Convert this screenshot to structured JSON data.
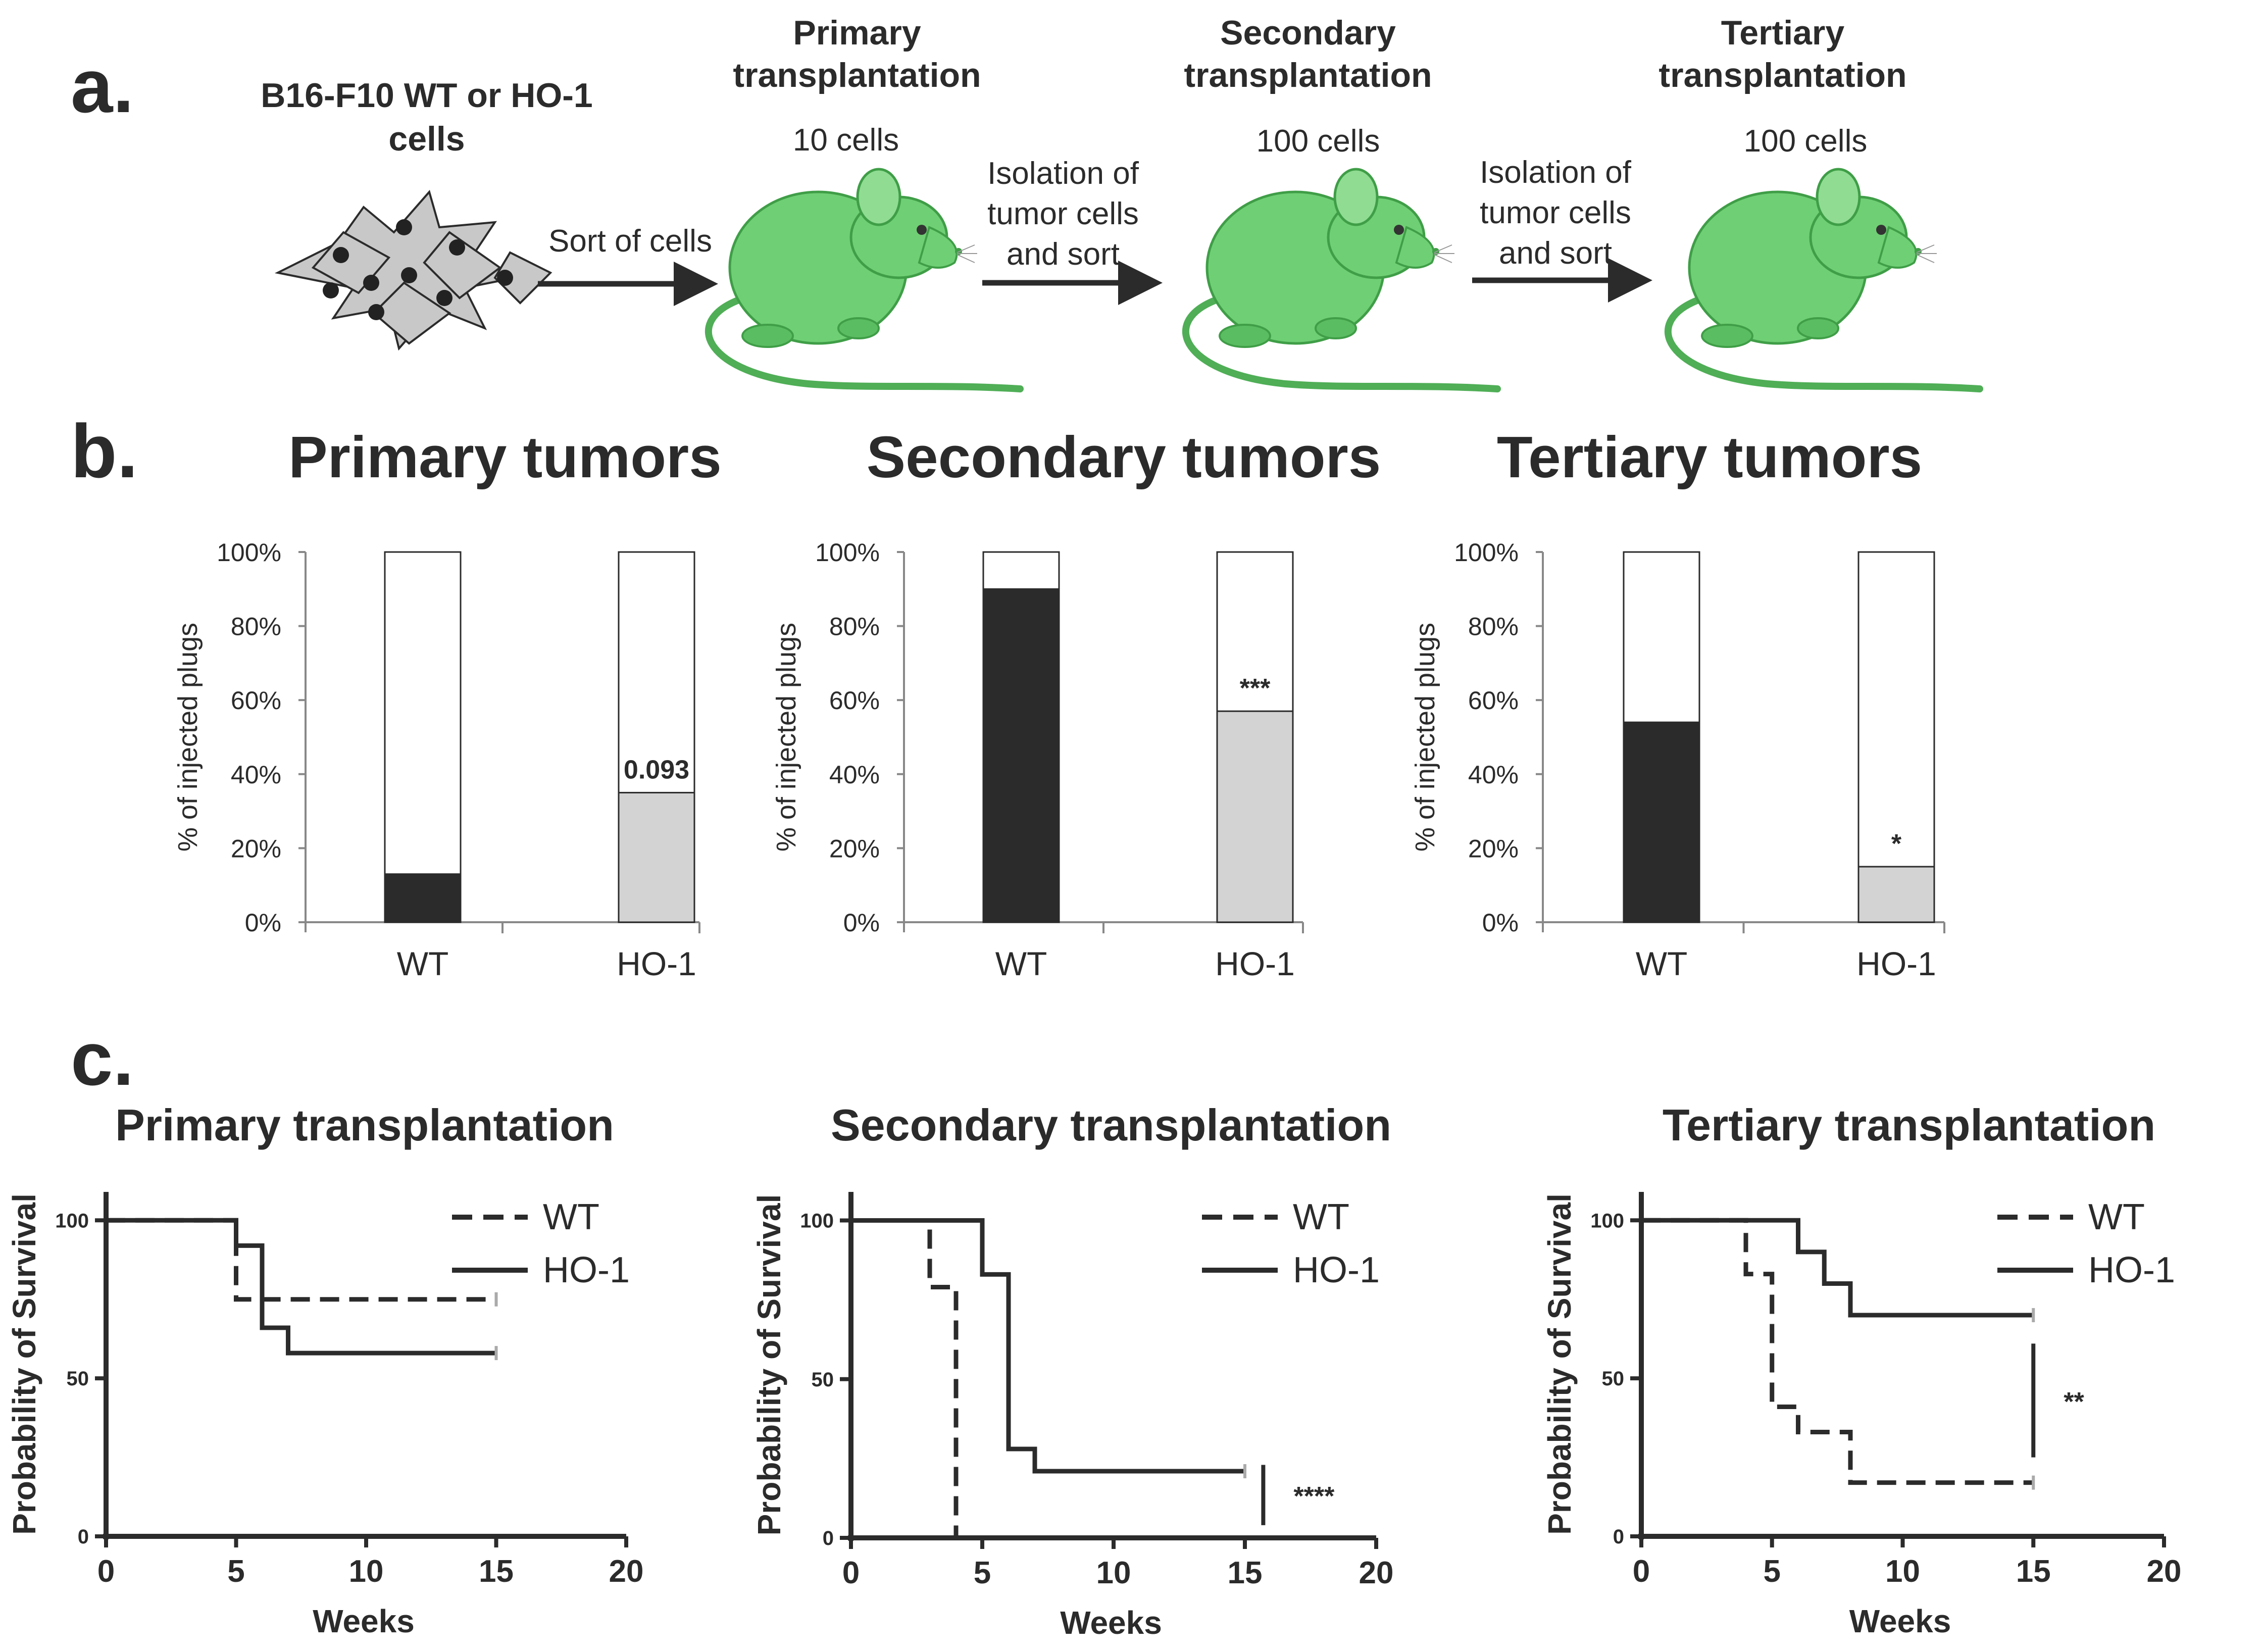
{
  "panel_a": {
    "letter": "a.",
    "cells_label_line1": "B16-F10 WT or HO-1",
    "cells_label_line2": "cells",
    "arrow1_label": "Sort of cells",
    "arrow2_label_lines": [
      "Isolation of",
      "tumor cells",
      "and sort"
    ],
    "arrow3_label_lines": [
      "Isolation of",
      "tumor cells",
      "and sort"
    ],
    "stages": [
      {
        "title_line1": "Primary",
        "title_line2": "transplantation",
        "cells": "10 cells"
      },
      {
        "title_line1": "Secondary",
        "title_line2": "transplantation",
        "cells": "100 cells"
      },
      {
        "title_line1": "Tertiary",
        "title_line2": "transplantation",
        "cells": "100 cells"
      }
    ],
    "colors": {
      "mouse": "#6fcf74",
      "mouse_dark": "#3f9e47",
      "cell": "#c8c8c8",
      "nucleus": "#222222"
    }
  },
  "panel_b": {
    "letter": "b."
  },
  "panel_c": {
    "letter": "c."
  },
  "chart_data": [
    {
      "type": "bar",
      "stacked": true,
      "title": "Primary tumors",
      "ylabel": "% of injected plugs",
      "categories": [
        "WT",
        "HO-1"
      ],
      "values": [
        13,
        35
      ],
      "ylim": [
        0,
        100
      ],
      "yticks": [
        "0%",
        "20%",
        "40%",
        "60%",
        "80%",
        "100%"
      ],
      "annotation": {
        "category": "HO-1",
        "text": "0.093"
      },
      "colors": [
        "#2b2b2b",
        "#d3d3d3"
      ]
    },
    {
      "type": "bar",
      "stacked": true,
      "title": "Secondary tumors",
      "ylabel": "% of injected plugs",
      "categories": [
        "WT",
        "HO-1"
      ],
      "values": [
        90,
        57
      ],
      "ylim": [
        0,
        100
      ],
      "yticks": [
        "0%",
        "20%",
        "40%",
        "60%",
        "80%",
        "100%"
      ],
      "annotation": {
        "category": "HO-1",
        "text": "***"
      },
      "colors": [
        "#2b2b2b",
        "#d3d3d3"
      ]
    },
    {
      "type": "bar",
      "stacked": true,
      "title": "Tertiary tumors",
      "ylabel": "% of injected plugs",
      "categories": [
        "WT",
        "HO-1"
      ],
      "values": [
        54,
        15
      ],
      "ylim": [
        0,
        100
      ],
      "yticks": [
        "0%",
        "20%",
        "40%",
        "60%",
        "80%",
        "100%"
      ],
      "annotation": {
        "category": "HO-1",
        "text": "*"
      },
      "colors": [
        "#2b2b2b",
        "#d3d3d3"
      ]
    },
    {
      "type": "line",
      "step": true,
      "title": "Primary transplantation",
      "xlabel": "Weeks",
      "ylabel": "Probability of Survival",
      "xlim": [
        0,
        20
      ],
      "ylim": [
        0,
        100
      ],
      "xticks": [
        0,
        5,
        10,
        15,
        20
      ],
      "yticks": [
        0,
        50,
        100
      ],
      "series": [
        {
          "name": "WT",
          "dash": true,
          "points": [
            [
              0,
              100
            ],
            [
              5,
              75
            ],
            [
              15,
              75
            ]
          ]
        },
        {
          "name": "HO-1",
          "dash": false,
          "points": [
            [
              0,
              100
            ],
            [
              5,
              92
            ],
            [
              6,
              66
            ],
            [
              7,
              58
            ],
            [
              15,
              58
            ]
          ]
        }
      ],
      "significance": null
    },
    {
      "type": "line",
      "step": true,
      "title": "Secondary transplantation",
      "xlabel": "Weeks",
      "ylabel": "Probability of Survival",
      "xlim": [
        0,
        20
      ],
      "ylim": [
        0,
        100
      ],
      "xticks": [
        0,
        5,
        10,
        15,
        20
      ],
      "yticks": [
        0,
        50,
        100
      ],
      "series": [
        {
          "name": "WT",
          "dash": true,
          "points": [
            [
              0,
              100
            ],
            [
              3,
              79
            ],
            [
              4,
              0
            ]
          ]
        },
        {
          "name": "HO-1",
          "dash": false,
          "points": [
            [
              0,
              100
            ],
            [
              5,
              83
            ],
            [
              6,
              28
            ],
            [
              7,
              21
            ],
            [
              15,
              21
            ]
          ]
        }
      ],
      "significance": {
        "text": "****",
        "x": 15.7,
        "y_range": [
          4,
          23
        ]
      }
    },
    {
      "type": "line",
      "step": true,
      "title": "Tertiary transplantation",
      "xlabel": "Weeks",
      "ylabel": "Probability of Survival",
      "xlim": [
        0,
        20
      ],
      "ylim": [
        0,
        100
      ],
      "xticks": [
        0,
        5,
        10,
        15,
        20
      ],
      "yticks": [
        0,
        50,
        100
      ],
      "series": [
        {
          "name": "WT",
          "dash": true,
          "points": [
            [
              0,
              100
            ],
            [
              4,
              83
            ],
            [
              5,
              41
            ],
            [
              6,
              33
            ],
            [
              8,
              17
            ],
            [
              15,
              17
            ]
          ]
        },
        {
          "name": "HO-1",
          "dash": false,
          "points": [
            [
              0,
              100
            ],
            [
              6,
              90
            ],
            [
              7,
              80
            ],
            [
              8,
              70
            ],
            [
              15,
              70
            ]
          ]
        }
      ],
      "significance": {
        "text": "**",
        "x": 15,
        "y_range": [
          25,
          61
        ]
      }
    }
  ]
}
